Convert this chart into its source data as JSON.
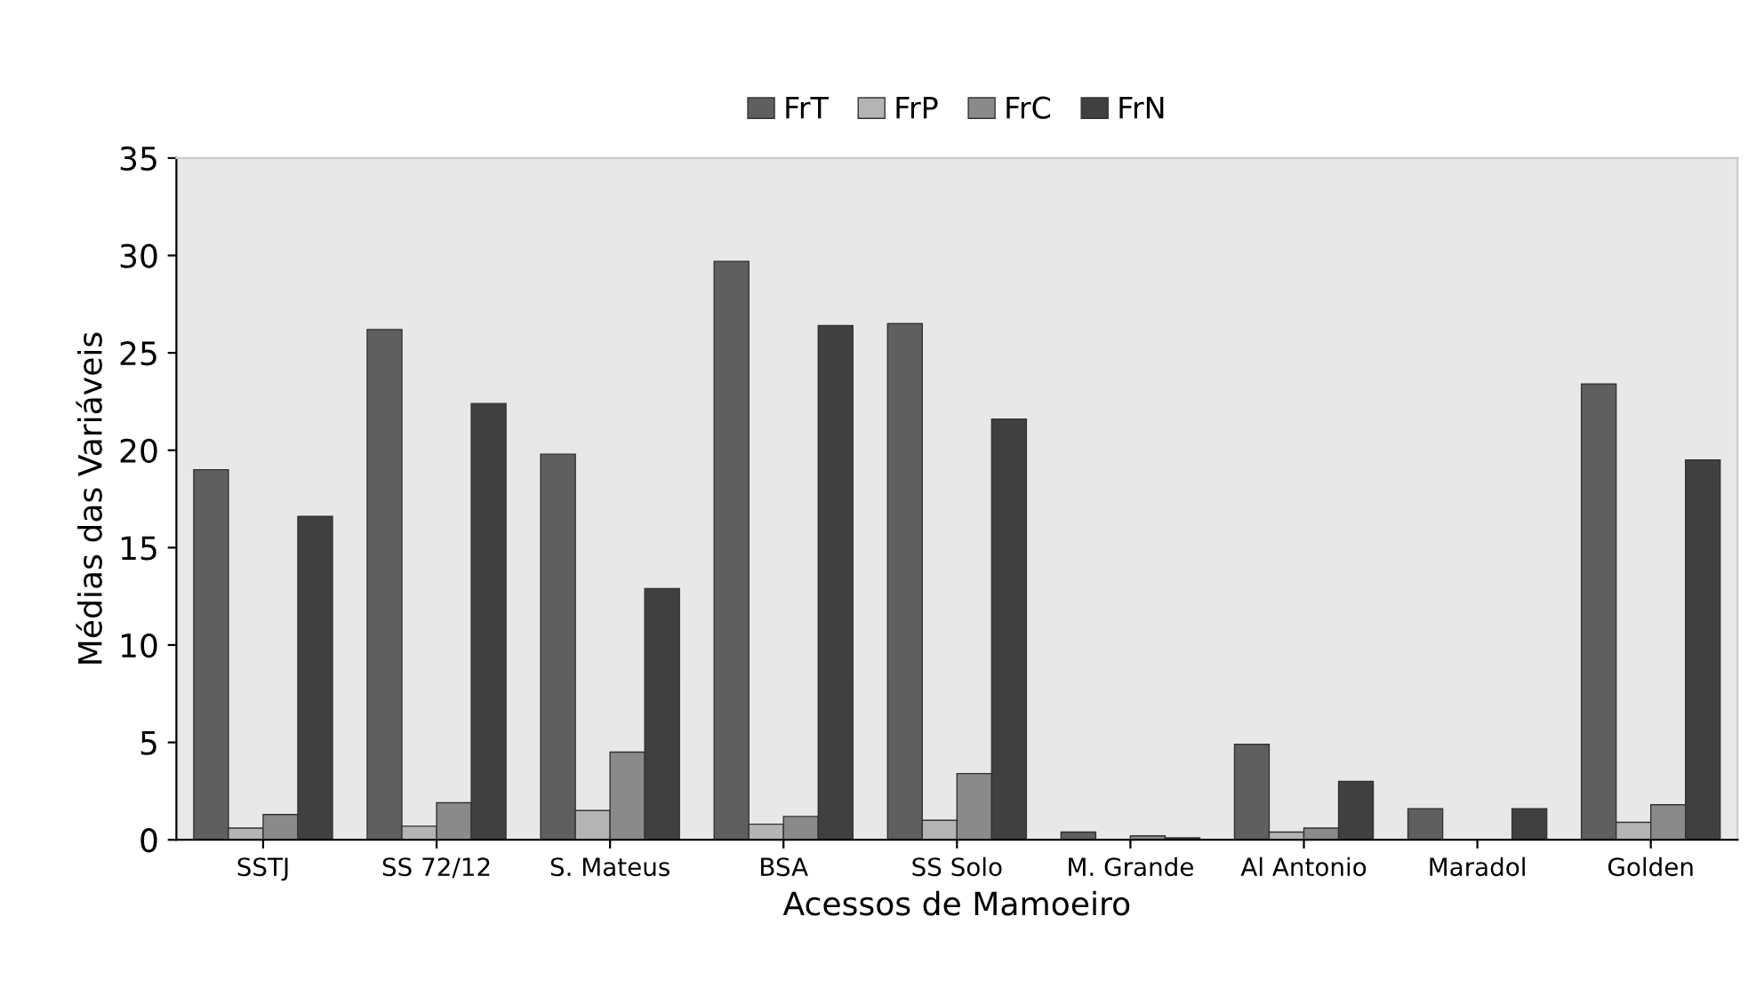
{
  "chart_data": {
    "type": "bar",
    "xlabel": "Acessos de Mamoeiro",
    "ylabel": "Médias das Variáveis",
    "categories": [
      "SSTJ",
      "SS 72/12",
      "S. Mateus",
      "BSA",
      "SS Solo",
      "M. Grande",
      "Al Antonio",
      "Maradol",
      "Golden"
    ],
    "series": [
      {
        "name": "FrT",
        "color": "#5f5f5f",
        "values": [
          19.0,
          26.2,
          19.8,
          29.7,
          26.5,
          0.4,
          4.9,
          1.6,
          23.4
        ]
      },
      {
        "name": "FrP",
        "color": "#b4b4b4",
        "values": [
          0.6,
          0.7,
          1.5,
          0.8,
          1.0,
          0,
          0.4,
          0,
          0.9
        ]
      },
      {
        "name": "FrC",
        "color": "#8a8a8a",
        "values": [
          1.3,
          1.9,
          4.5,
          1.2,
          3.4,
          0.2,
          0.6,
          0,
          1.8
        ]
      },
      {
        "name": "FrN",
        "color": "#404040",
        "values": [
          16.6,
          22.4,
          12.9,
          26.4,
          21.6,
          0.1,
          3.0,
          1.6,
          19.5
        ]
      }
    ],
    "ylim": [
      0,
      35
    ],
    "yticks": [
      0,
      5,
      10,
      15,
      20,
      25,
      30,
      35
    ],
    "grid": false,
    "legend": "top"
  }
}
